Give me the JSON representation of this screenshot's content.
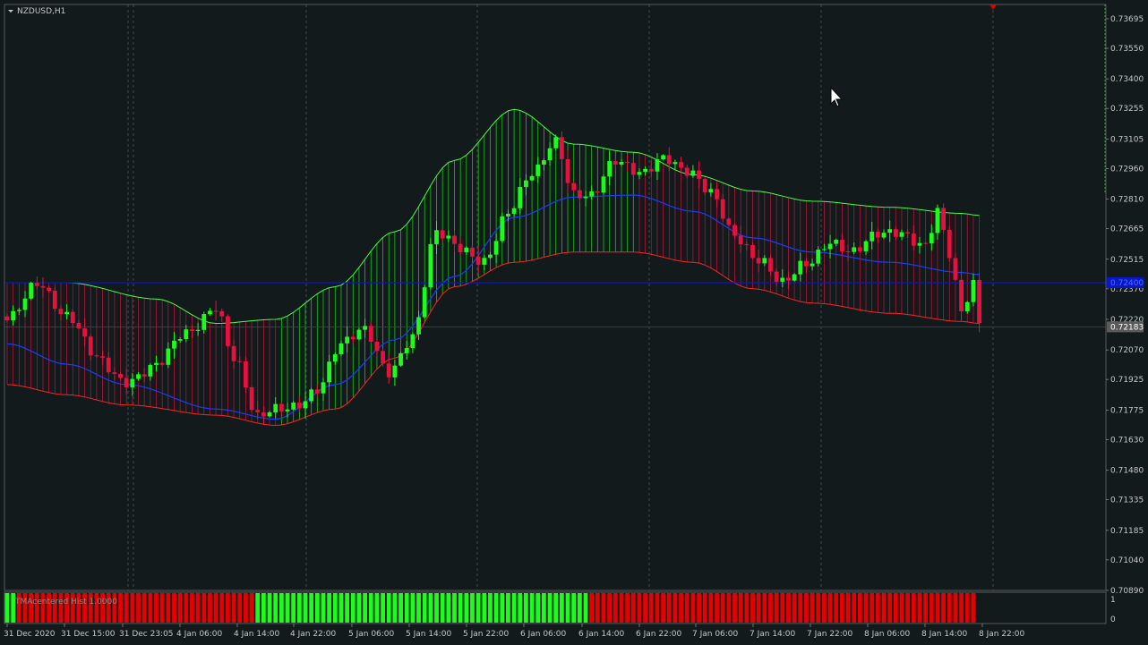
{
  "symbol_label": "NZDUSD,H1",
  "indicator_label": "TMAcentered Hist 1.0000",
  "colors": {
    "background": "#121a1c",
    "bull": "#1aff1a",
    "bear": "#e8113e",
    "upper_band": "#44ff44",
    "lower_band": "#ff2222",
    "middle_line": "#1a3cff",
    "hline_blue": "#0a17c8",
    "hline_red": "#e00000",
    "grid": "#8a8a8a"
  },
  "chart_data": [
    {
      "type": "candlestick",
      "title": "",
      "y_ticks": [
        "0.73695",
        "0.73550",
        "0.73400",
        "0.73255",
        "0.73105",
        "0.72960",
        "0.72810",
        "0.72665",
        "0.72515",
        "0.72370",
        "0.72220",
        "0.72070",
        "0.71925",
        "0.71775",
        "0.71630",
        "0.71480",
        "0.71335",
        "0.71185",
        "0.71040",
        "0.70890"
      ],
      "ylim": [
        0.7089,
        0.73765
      ],
      "x_ticks": [
        "31 Dec 2020",
        "31 Dec 15:00",
        "31 Dec 23:05",
        "4 Jan 06:00",
        "4 Jan 14:00",
        "4 Jan 22:00",
        "5 Jan 06:00",
        "5 Jan 14:00",
        "5 Jan 22:00",
        "6 Jan 06:00",
        "6 Jan 14:00",
        "6 Jan 22:00",
        "7 Jan 06:00",
        "7 Jan 14:00",
        "7 Jan 22:00",
        "8 Jan 06:00",
        "8 Jan 14:00",
        "8 Jan 22:00"
      ],
      "current_price_label": "0.72183",
      "blue_level_label": "0.72400",
      "blue_level": 0.724,
      "current_price": 0.72183,
      "tma_anchors": {
        "middle": [
          [
            0,
            0.721
          ],
          [
            10,
            0.72
          ],
          [
            20,
            0.719
          ],
          [
            35,
            0.7178
          ],
          [
            45,
            0.7173
          ],
          [
            55,
            0.719
          ],
          [
            65,
            0.7212
          ],
          [
            75,
            0.7243
          ],
          [
            85,
            0.7272
          ],
          [
            95,
            0.7282
          ],
          [
            105,
            0.7283
          ],
          [
            115,
            0.7275
          ],
          [
            125,
            0.7262
          ],
          [
            135,
            0.7255
          ],
          [
            148,
            0.725
          ],
          [
            160,
            0.7245
          ],
          [
            163,
            0.7244
          ]
        ],
        "upper": [
          [
            0,
            0.724
          ],
          [
            10,
            0.724
          ],
          [
            25,
            0.7232
          ],
          [
            35,
            0.722
          ],
          [
            45,
            0.7222
          ],
          [
            55,
            0.7238
          ],
          [
            65,
            0.7265
          ],
          [
            75,
            0.73
          ],
          [
            85,
            0.7325
          ],
          [
            95,
            0.7308
          ],
          [
            105,
            0.7304
          ],
          [
            115,
            0.7293
          ],
          [
            125,
            0.7285
          ],
          [
            135,
            0.728
          ],
          [
            148,
            0.7277
          ],
          [
            160,
            0.7274
          ],
          [
            163,
            0.7273
          ]
        ],
        "lower": [
          [
            0,
            0.719
          ],
          [
            10,
            0.7185
          ],
          [
            20,
            0.718
          ],
          [
            35,
            0.7175
          ],
          [
            45,
            0.717
          ],
          [
            55,
            0.7178
          ],
          [
            65,
            0.7203
          ],
          [
            75,
            0.7238
          ],
          [
            85,
            0.725
          ],
          [
            95,
            0.7255
          ],
          [
            105,
            0.7255
          ],
          [
            115,
            0.725
          ],
          [
            125,
            0.7237
          ],
          [
            135,
            0.723
          ],
          [
            148,
            0.7225
          ],
          [
            160,
            0.7221
          ],
          [
            163,
            0.722
          ]
        ]
      },
      "close_anchors": [
        [
          0,
          0.7222
        ],
        [
          5,
          0.7242
        ],
        [
          10,
          0.7222
        ],
        [
          15,
          0.7203
        ],
        [
          20,
          0.7193
        ],
        [
          25,
          0.7198
        ],
        [
          30,
          0.7215
        ],
        [
          35,
          0.723
        ],
        [
          38,
          0.7203
        ],
        [
          42,
          0.7172
        ],
        [
          45,
          0.7178
        ],
        [
          48,
          0.7181
        ],
        [
          52,
          0.7188
        ],
        [
          56,
          0.7208
        ],
        [
          60,
          0.7217
        ],
        [
          64,
          0.7198
        ],
        [
          68,
          0.7213
        ],
        [
          72,
          0.7263
        ],
        [
          76,
          0.7258
        ],
        [
          80,
          0.7252
        ],
        [
          84,
          0.7273
        ],
        [
          88,
          0.7292
        ],
        [
          92,
          0.7311
        ],
        [
          95,
          0.7285
        ],
        [
          98,
          0.7282
        ],
        [
          102,
          0.7298
        ],
        [
          106,
          0.7295
        ],
        [
          110,
          0.7303
        ],
        [
          114,
          0.7293
        ],
        [
          118,
          0.7283
        ],
        [
          122,
          0.7265
        ],
        [
          126,
          0.7252
        ],
        [
          130,
          0.7238
        ],
        [
          134,
          0.7249
        ],
        [
          138,
          0.7262
        ],
        [
          142,
          0.7255
        ],
        [
          146,
          0.7262
        ],
        [
          150,
          0.7265
        ],
        [
          154,
          0.726
        ],
        [
          156,
          0.7276
        ],
        [
          158,
          0.7253
        ],
        [
          160,
          0.7223
        ],
        [
          162,
          0.7238
        ],
        [
          163,
          0.7219
        ]
      ],
      "histogram": {
        "ylim": [
          0,
          1
        ],
        "y_ticks": [
          "1",
          "0"
        ],
        "runs": [
          [
            "up",
            2
          ],
          [
            "down",
            40
          ],
          [
            "up",
            56
          ],
          [
            "down",
            65
          ]
        ]
      }
    }
  ]
}
